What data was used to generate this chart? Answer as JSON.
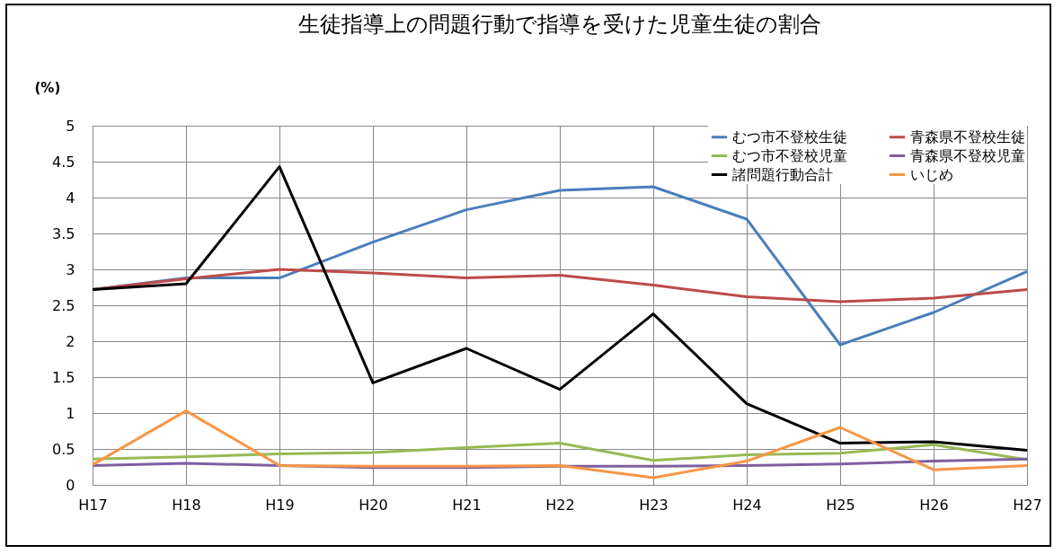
{
  "chart_data": {
    "type": "line",
    "title": "生徒指導上の問題行動で指導を受けた児童生徒の割合",
    "ylabel": "(%)",
    "categories": [
      "H17",
      "H18",
      "H19",
      "H20",
      "H21",
      "H22",
      "H23",
      "H24",
      "H25",
      "H26",
      "H27"
    ],
    "series": [
      {
        "name": "むつ市不登校生徒",
        "color": "#4a7ebb",
        "values": [
          2.72,
          2.88,
          2.88,
          3.38,
          3.83,
          4.1,
          4.15,
          3.7,
          1.95,
          2.4,
          2.97
        ]
      },
      {
        "name": "青森県不登校生徒",
        "color": "#be4b48",
        "values": [
          2.72,
          2.87,
          3.0,
          2.95,
          2.88,
          2.92,
          2.78,
          2.62,
          2.55,
          2.6,
          2.72
        ]
      },
      {
        "name": "むつ市不登校児童",
        "color": "#98b954",
        "values": [
          0.36,
          0.39,
          0.43,
          0.45,
          0.52,
          0.58,
          0.34,
          0.42,
          0.44,
          0.56,
          0.35
        ]
      },
      {
        "name": "青森県不登校児童",
        "color": "#7d60a0",
        "values": [
          0.27,
          0.3,
          0.27,
          0.24,
          0.24,
          0.26,
          0.26,
          0.27,
          0.29,
          0.33,
          0.36
        ]
      },
      {
        "name": "諸問題行動合計",
        "color": "#000000",
        "values": [
          2.72,
          2.8,
          4.43,
          1.42,
          1.9,
          1.33,
          2.38,
          1.13,
          0.58,
          0.6,
          0.48
        ]
      },
      {
        "name": "いじめ",
        "color": "#f79646",
        "values": [
          0.28,
          1.03,
          0.27,
          0.26,
          0.26,
          0.27,
          0.1,
          0.33,
          0.8,
          0.21,
          0.27
        ]
      }
    ],
    "ylim": [
      0,
      5
    ],
    "yticks": [
      0,
      0.5,
      1,
      1.5,
      2,
      2.5,
      3,
      3.5,
      4,
      4.5,
      5
    ],
    "grid": true,
    "legend": "top right",
    "line_style": "solid",
    "marker": "none"
  }
}
